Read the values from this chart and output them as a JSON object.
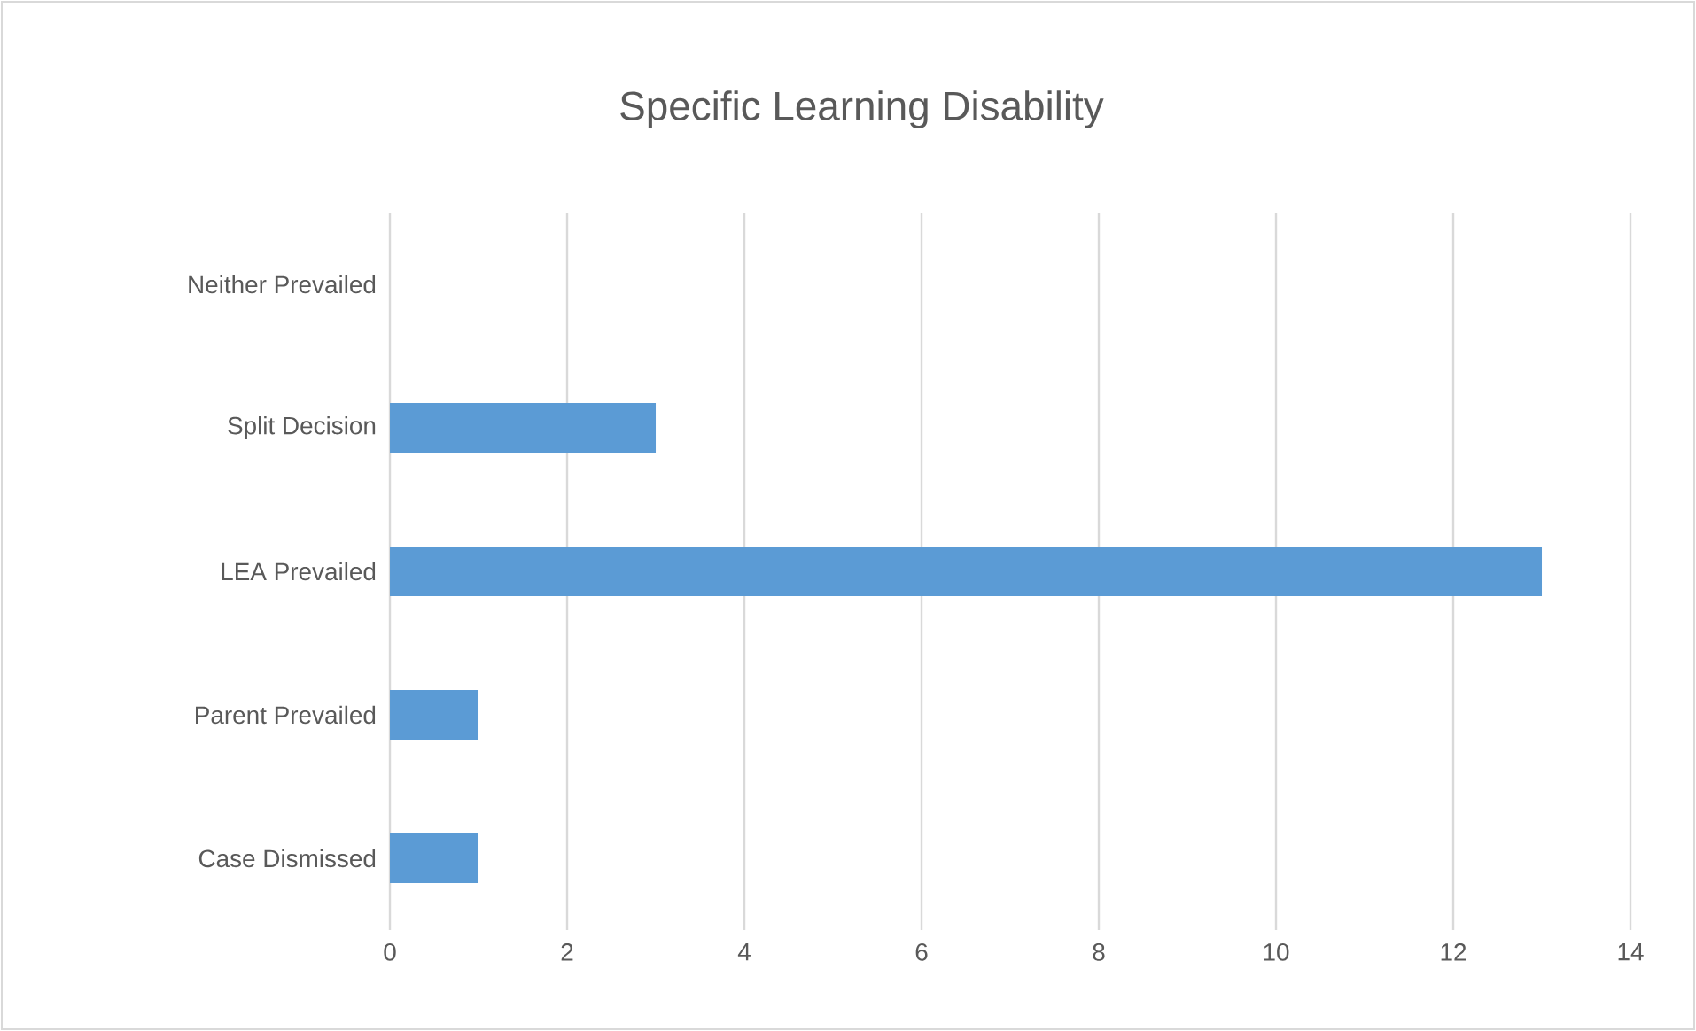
{
  "chart_data": {
    "type": "bar",
    "orientation": "horizontal",
    "title": "Specific Learning Disability",
    "categories": [
      "Neither Prevailed",
      "Split Decision",
      "LEA Prevailed",
      "Parent Prevailed",
      "Case Dismissed"
    ],
    "values": [
      0,
      3,
      13,
      1,
      1
    ],
    "color": "#5b9bd5",
    "xlim": [
      0,
      14
    ],
    "xticks": [
      0,
      2,
      4,
      6,
      8,
      10,
      12,
      14
    ],
    "grid": "x"
  }
}
